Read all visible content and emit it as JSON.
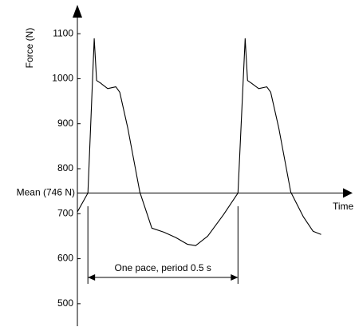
{
  "chart_data": {
    "type": "line",
    "y_label": "Force (N)",
    "x_label": "Time",
    "x": [
      -0.035,
      0,
      0.021,
      0.029,
      0.043,
      0.066,
      0.093,
      0.106,
      0.133,
      0.173,
      0.213,
      0.253,
      0.293,
      0.332,
      0.359,
      0.399,
      0.452,
      0.5,
      0.524,
      0.532,
      0.545,
      0.569,
      0.596,
      0.609,
      0.636,
      0.676,
      0.718,
      0.75,
      0.777
    ],
    "series": [
      {
        "color": "#000000",
        "values": [
          704,
          746,
          1089,
          996,
          990,
          978,
          982,
          970,
          890,
          748,
          668,
          659,
          647,
          632,
          629,
          650,
          698,
          746,
          1089,
          996,
          990,
          978,
          982,
          970,
          890,
          748,
          693,
          661,
          654
        ]
      }
    ],
    "xlim": [
      -0.035,
      0.85
    ],
    "ylim": [
      450,
      1150
    ],
    "yticks": [
      500,
      600,
      700,
      800,
      900,
      1000,
      1100
    ],
    "mean": {
      "label": "Mean (746 N)",
      "value": 746
    },
    "period": {
      "text": "One pace, period 0.5 s",
      "x_start": 0,
      "x_end": 0.5
    }
  }
}
